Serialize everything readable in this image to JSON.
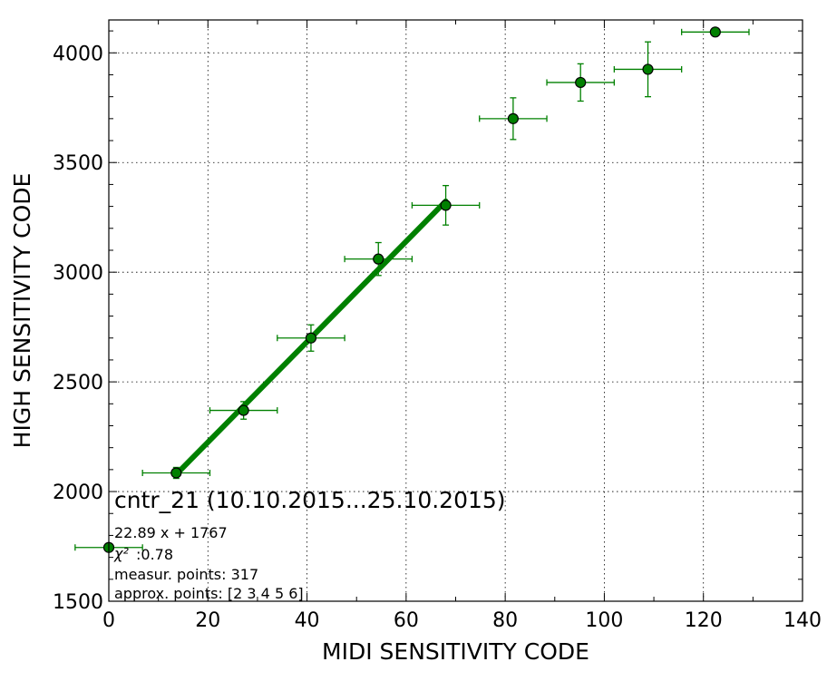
{
  "chart_data": {
    "type": "scatter",
    "xlabel": "MIDI SENSITIVITY CODE",
    "ylabel": "HIGH SENSITIVITY CODE",
    "xlim": [
      0,
      140
    ],
    "ylim": [
      1500,
      4150
    ],
    "xticks": [
      0,
      20,
      40,
      60,
      80,
      100,
      120,
      140
    ],
    "yticks": [
      1500,
      2000,
      2500,
      3000,
      3500,
      4000
    ],
    "grid": true,
    "marker_color": "#008000",
    "fit_color": "#008000",
    "points": [
      {
        "x": 0,
        "y": 1745,
        "xerr": 6.8,
        "yerr": 0
      },
      {
        "x": 13.6,
        "y": 2085,
        "xerr": 6.8,
        "yerr": 25
      },
      {
        "x": 27.2,
        "y": 2370,
        "xerr": 6.8,
        "yerr": 40
      },
      {
        "x": 40.8,
        "y": 2700,
        "xerr": 6.8,
        "yerr": 60
      },
      {
        "x": 54.4,
        "y": 3060,
        "xerr": 6.8,
        "yerr": 75
      },
      {
        "x": 68.0,
        "y": 3305,
        "xerr": 6.8,
        "yerr": 90
      },
      {
        "x": 81.6,
        "y": 3700,
        "xerr": 6.8,
        "yerr": 95
      },
      {
        "x": 95.2,
        "y": 3865,
        "xerr": 6.8,
        "yerr": 85
      },
      {
        "x": 108.8,
        "y": 3925,
        "xerr": 6.8,
        "yerr": 125
      },
      {
        "x": 122.4,
        "y": 4095,
        "xerr": 6.8,
        "yerr": 0
      }
    ],
    "fit_line": {
      "slope": 22.89,
      "intercept": 1767,
      "x_range": [
        13.6,
        68.0
      ]
    },
    "annotations": {
      "title": "cntr_21 (10.10.2015...25.10.2015)",
      "equation": "22.89 x + 1767",
      "chi2": ":0.78",
      "chi2_symbol": "χ²",
      "measur_points": "measur. points: 317",
      "approx_points": "approx. points: [2 3 4 5 6]"
    }
  }
}
